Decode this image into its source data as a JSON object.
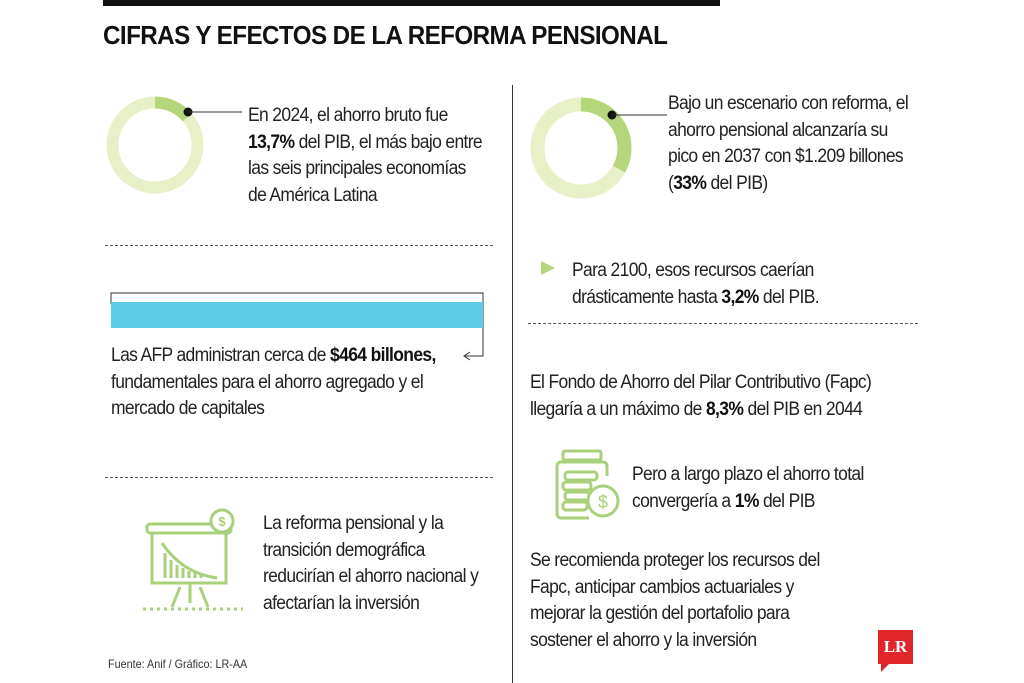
{
  "title": "CIFRAS Y EFECTOS DE LA REFORMA PENSIONAL",
  "left": {
    "savings_2024": {
      "percent": 13.7,
      "pre": "En 2024, el ahorro bruto fue",
      "bold": "13,7%",
      "post": "del PIB, el más bajo entre las seis principales economías de América Latina"
    },
    "afp": {
      "pre": "Las AFP administran cerca de",
      "bold": "$464 billones,",
      "post": "fundamentales para el ahorro agregado y el mercado de capitales"
    },
    "reform_effect": "La reforma pensional y la transición demográfica reducirían el ahorro nacional y afectarían la inversión",
    "source": "Fuente: Anif / Gráfico: LR-AA"
  },
  "right": {
    "peak": {
      "percent": 33,
      "pre": "Bajo un escenario con reforma, el ahorro pensional alcanzaría su pico en 2037 con $1.209 billones (",
      "bold": "33%",
      "post": "del PIB)"
    },
    "drop": {
      "pre": "Para 2100, esos recursos caerían drásticamente hasta",
      "bold": "3,2%",
      "post": "del PIB."
    },
    "fapc": {
      "pre": "El Fondo de Ahorro del Pilar Contributivo (Fapc) llegaría a un máximo de",
      "bold": "8,3%",
      "post": "del PIB en 2044"
    },
    "long_term": {
      "pre": "Pero a largo plazo el ahorro total convergería a",
      "bold": "1%",
      "post": "del PIB"
    },
    "recommendation": "Se recomienda proteger los recursos del Fapc, anticipar cambios actuariales y mejorar la gestión del portafolio para sostener el ahorro y la inversión"
  },
  "logo": "LR",
  "colors": {
    "donut_fill": "#b5d67a",
    "donut_track": "#e8f0c8",
    "bar": "#5bcde6",
    "icon": "#a9d07a",
    "logo": "#e0262a"
  }
}
